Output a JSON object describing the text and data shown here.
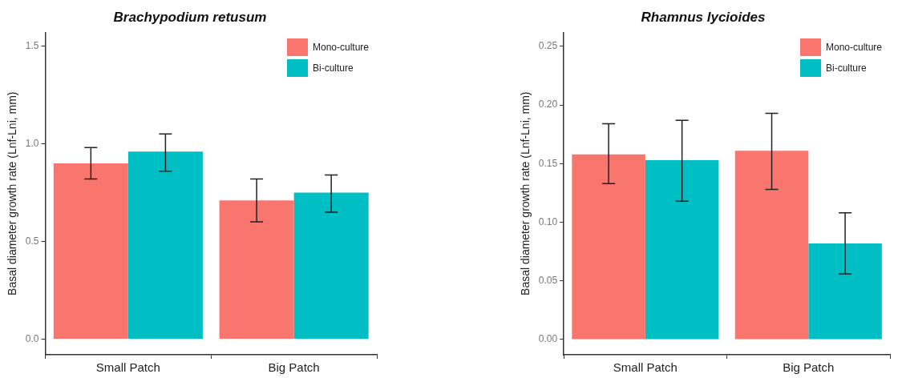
{
  "chart_data": [
    {
      "type": "bar",
      "title": "Brachypodium retusum",
      "ylabel": "Basal diameter growth rate (Lnf-Lni, mm)",
      "categories": [
        "Small Patch",
        "Big Patch"
      ],
      "series": [
        {
          "name": "Mono-culture",
          "color": "#f8766d",
          "values": [
            0.9,
            0.71
          ],
          "errors": [
            [
              0.82,
              0.98
            ],
            [
              0.6,
              0.82
            ]
          ]
        },
        {
          "name": "Bi-culture",
          "color": "#00bfc4",
          "values": [
            0.96,
            0.75
          ],
          "errors": [
            [
              0.86,
              1.05
            ],
            [
              0.65,
              0.84
            ]
          ]
        }
      ],
      "ylim": [
        -0.08,
        1.57
      ],
      "yticks": [
        {
          "value": 0,
          "label": "0.0"
        },
        {
          "value": 0.5,
          "label": "0.5"
        },
        {
          "value": 1,
          "label": "1.0"
        },
        {
          "value": 1.5,
          "label": "1.5"
        }
      ],
      "grid": false,
      "legend": "top right"
    },
    {
      "type": "bar",
      "title": "Rhamnus lycioides",
      "ylabel": "Basal diameter growth rate (Lnf-Lni, mm)",
      "categories": [
        "Small Patch",
        "Big Patch"
      ],
      "series": [
        {
          "name": "Mono-culture",
          "color": "#f8766d",
          "values": [
            0.158,
            0.161
          ],
          "errors": [
            [
              0.133,
              0.184
            ],
            [
              0.128,
              0.193
            ]
          ]
        },
        {
          "name": "Bi-culture",
          "color": "#00bfc4",
          "values": [
            0.153,
            0.082
          ],
          "errors": [
            [
              0.118,
              0.187
            ],
            [
              0.056,
              0.108
            ]
          ]
        }
      ],
      "ylim": [
        -0.013,
        0.262
      ],
      "yticks": [
        {
          "value": 0,
          "label": "0.00"
        },
        {
          "value": 0.05,
          "label": "0.05"
        },
        {
          "value": 0.1,
          "label": "0.10"
        },
        {
          "value": 0.15,
          "label": "0.15"
        },
        {
          "value": 0.2,
          "label": "0.20"
        },
        {
          "value": 0.25,
          "label": "0.25"
        }
      ],
      "grid": false,
      "legend": "top right"
    }
  ]
}
